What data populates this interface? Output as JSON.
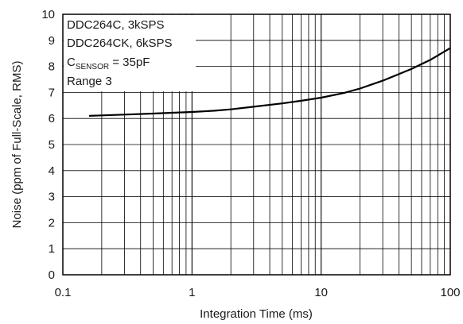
{
  "chart_data": {
    "type": "line",
    "xscale": "log",
    "xlim": [
      0.1,
      100
    ],
    "ylim": [
      0,
      10
    ],
    "grid": true,
    "xlabel": "Integration Time (ms)",
    "ylabel": "Noise (ppm of Full-Scale, RMS)",
    "x_tick_labels": [
      "0.1",
      "1",
      "10",
      "100"
    ],
    "y_tick_labels": [
      "0",
      "1",
      "2",
      "3",
      "4",
      "5",
      "6",
      "7",
      "8",
      "9",
      "10"
    ],
    "annotations": {
      "line1": "DDC264C, 3kSPS",
      "line2": "DDC264CK, 6kSPS",
      "line3_main": "C",
      "line3_sub": "SENSOR",
      "line3_rest": " = 35pF",
      "line4": "Range 3"
    },
    "series": [
      {
        "color": "#000000",
        "x": [
          0.16,
          0.2,
          0.3,
          0.5,
          0.7,
          1,
          1.5,
          2,
          3,
          5,
          7,
          10,
          15,
          20,
          30,
          50,
          70,
          100
        ],
        "y": [
          6.1,
          6.12,
          6.15,
          6.19,
          6.22,
          6.25,
          6.3,
          6.35,
          6.45,
          6.58,
          6.68,
          6.8,
          6.98,
          7.15,
          7.45,
          7.9,
          8.25,
          8.7
        ]
      }
    ]
  }
}
